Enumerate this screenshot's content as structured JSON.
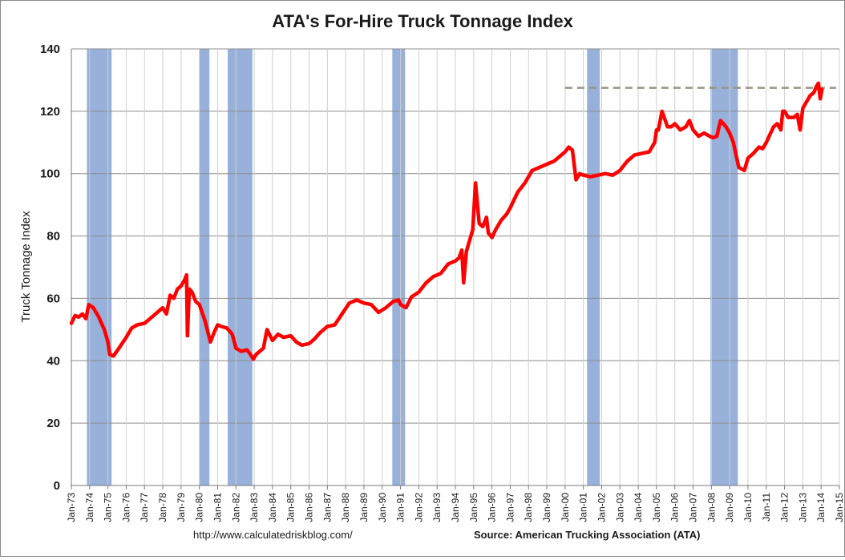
{
  "chart_data": {
    "type": "line",
    "title": "ATA's For-Hire Truck Tonnage Index",
    "xlabel": "",
    "ylabel": "Truck Tonnage Index",
    "ylim": [
      0,
      140
    ],
    "y_ticks": [
      "0",
      "20",
      "40",
      "60",
      "80",
      "100",
      "120",
      "140"
    ],
    "x_range": [
      1973.0,
      2015.0
    ],
    "x_ticks": [
      "Jan-73",
      "Jan-74",
      "Jan-75",
      "Jan-76",
      "Jan-77",
      "Jan-78",
      "Jan-79",
      "Jan-80",
      "Jan-81",
      "Jan-82",
      "Jan-83",
      "Jan-84",
      "Jan-85",
      "Jan-86",
      "Jan-87",
      "Jan-88",
      "Jan-89",
      "Jan-90",
      "Jan-91",
      "Jan-92",
      "Jan-93",
      "Jan-94",
      "Jan-95",
      "Jan-96",
      "Jan-97",
      "Jan-98",
      "Jan-99",
      "Jan-00",
      "Jan-01",
      "Jan-02",
      "Jan-03",
      "Jan-04",
      "Jan-05",
      "Jan-06",
      "Jan-07",
      "Jan-08",
      "Jan-09",
      "Jan-10",
      "Jan-11",
      "Jan-12",
      "Jan-13",
      "Jan-14",
      "Jan-15"
    ],
    "grid": true,
    "recessions": [
      [
        1973.85,
        1975.2
      ],
      [
        1980.0,
        1980.55
      ],
      [
        1981.55,
        1982.9
      ],
      [
        1990.55,
        1991.25
      ],
      [
        2001.2,
        2001.9
      ],
      [
        2007.95,
        2009.45
      ]
    ],
    "reference_line": {
      "y": 127.5,
      "x_start": 2000.0,
      "x_end": 2015.0,
      "style": "dashed",
      "color": "#9a9484"
    },
    "series": [
      {
        "name": "Truck Tonnage Index",
        "color": "#ff0000",
        "x": [
          1973.0,
          1973.2,
          1973.4,
          1973.6,
          1973.8,
          1973.95,
          1974.2,
          1974.5,
          1974.8,
          1975.0,
          1975.1,
          1975.3,
          1975.6,
          1976.0,
          1976.3,
          1976.6,
          1977.0,
          1977.4,
          1977.8,
          1978.0,
          1978.2,
          1978.4,
          1978.6,
          1978.8,
          1979.0,
          1979.2,
          1979.3,
          1979.35,
          1979.45,
          1979.6,
          1979.8,
          1980.0,
          1980.3,
          1980.6,
          1980.8,
          1981.0,
          1981.2,
          1981.5,
          1981.8,
          1982.0,
          1982.3,
          1982.6,
          1982.8,
          1982.95,
          1983.1,
          1983.3,
          1983.5,
          1983.7,
          1984.0,
          1984.3,
          1984.6,
          1985.0,
          1985.3,
          1985.6,
          1986.0,
          1986.3,
          1986.6,
          1987.0,
          1987.4,
          1987.8,
          1988.2,
          1988.6,
          1989.0,
          1989.4,
          1989.8,
          1990.2,
          1990.6,
          1990.9,
          1991.0,
          1991.3,
          1991.6,
          1992.0,
          1992.4,
          1992.8,
          1993.2,
          1993.6,
          1994.0,
          1994.2,
          1994.35,
          1994.45,
          1994.6,
          1994.8,
          1994.95,
          1995.1,
          1995.3,
          1995.5,
          1995.7,
          1995.8,
          1996.0,
          1996.2,
          1996.5,
          1996.8,
          1997.0,
          1997.4,
          1997.8,
          1998.2,
          1998.6,
          1999.0,
          1999.4,
          1999.8,
          2000.0,
          2000.2,
          2000.4,
          2000.6,
          2000.8,
          2001.0,
          2001.4,
          2001.8,
          2002.2,
          2002.6,
          2003.0,
          2003.4,
          2003.8,
          2004.2,
          2004.6,
          2004.9,
          2005.0,
          2005.1,
          2005.3,
          2005.6,
          2005.8,
          2006.0,
          2006.3,
          2006.6,
          2006.8,
          2007.0,
          2007.3,
          2007.6,
          2007.9,
          2008.1,
          2008.3,
          2008.5,
          2008.8,
          2009.0,
          2009.2,
          2009.35,
          2009.5,
          2009.8,
          2010.0,
          2010.3,
          2010.6,
          2010.8,
          2011.0,
          2011.2,
          2011.4,
          2011.6,
          2011.8,
          2011.9,
          2012.0,
          2012.2,
          2012.5,
          2012.7,
          2012.85,
          2013.0,
          2013.2,
          2013.4,
          2013.6,
          2013.75,
          2013.85,
          2013.95,
          2014.05
        ],
        "values": [
          52,
          54.5,
          54,
          55,
          53.5,
          58,
          57,
          54,
          50,
          46,
          42,
          41.5,
          44,
          47.5,
          50.5,
          51.5,
          52,
          54,
          56,
          57,
          55,
          61,
          60,
          63,
          64,
          66,
          67.5,
          48,
          63,
          62,
          59,
          58,
          53,
          46,
          49,
          51.5,
          51,
          50.5,
          48.5,
          44,
          43,
          43.5,
          42,
          40.5,
          42,
          43,
          44,
          50,
          46.5,
          48.5,
          47.5,
          48,
          46,
          45,
          45.5,
          47,
          49,
          51,
          51.5,
          55,
          58.5,
          59.5,
          58.5,
          58,
          55.5,
          57,
          59,
          59.5,
          58,
          57,
          60.5,
          62,
          65,
          67,
          68,
          71,
          72,
          73,
          75.5,
          65,
          75,
          79,
          82,
          97,
          84,
          83,
          86,
          81,
          79.5,
          82,
          85,
          87,
          89,
          94,
          97,
          101,
          102,
          103,
          104,
          106,
          107,
          108.5,
          107.5,
          98,
          100,
          99.5,
          99,
          99.5,
          100,
          99.5,
          101,
          104,
          106,
          106.5,
          107,
          110,
          114,
          114,
          120,
          115,
          115,
          116,
          114,
          115,
          117,
          114,
          112,
          113,
          112,
          111.5,
          112,
          117,
          115,
          113,
          110,
          106,
          102,
          101,
          105,
          106.5,
          108.5,
          108,
          110,
          112.5,
          115,
          116,
          114,
          120,
          120,
          118,
          118,
          119,
          114,
          121,
          123,
          125,
          126,
          128,
          129,
          124,
          127
        ]
      }
    ]
  },
  "footer": {
    "url": "http://www.calculatedriskblog.com/",
    "source": "Source: American Trucking Association (ATA)"
  }
}
